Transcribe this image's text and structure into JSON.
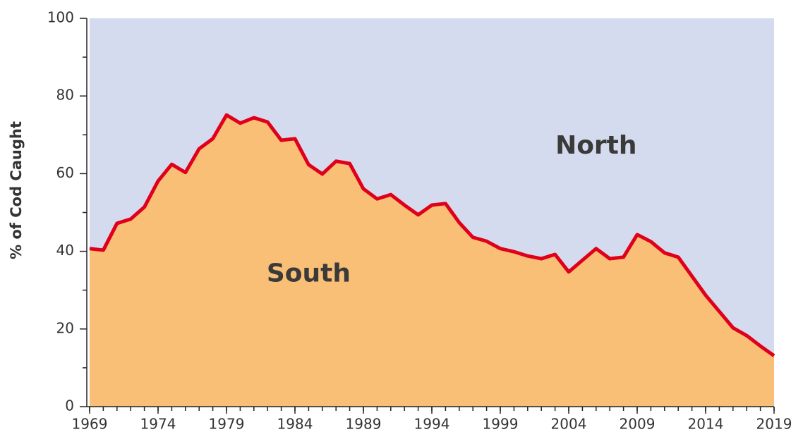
{
  "chart_data": {
    "type": "area",
    "y_label": "% of Cod Caught",
    "x": [
      1969,
      1970,
      1971,
      1972,
      1973,
      1974,
      1975,
      1976,
      1977,
      1978,
      1979,
      1980,
      1981,
      1982,
      1983,
      1984,
      1985,
      1986,
      1987,
      1988,
      1989,
      1990,
      1991,
      1992,
      1993,
      1994,
      1995,
      1996,
      1997,
      1998,
      1999,
      2000,
      2001,
      2002,
      2003,
      2004,
      2005,
      2006,
      2007,
      2008,
      2009,
      2010,
      2011,
      2012,
      2013,
      2014,
      2015,
      2016,
      2017,
      2018,
      2019
    ],
    "series": [
      {
        "name": "South",
        "color": "#f9bf76",
        "line_color": "#e0001b",
        "values": [
          40.7,
          40.3,
          47.2,
          48.3,
          51.4,
          58.1,
          62.4,
          60.3,
          66.4,
          69.0,
          75.1,
          73.0,
          74.4,
          73.3,
          68.6,
          69.0,
          62.3,
          59.9,
          63.2,
          62.6,
          56.1,
          53.5,
          54.6,
          51.9,
          49.4,
          51.9,
          52.3,
          47.4,
          43.6,
          42.6,
          40.7,
          39.9,
          38.8,
          38.1,
          39.2,
          34.7,
          37.7,
          40.7,
          38.1,
          38.5,
          44.3,
          42.5,
          39.6,
          38.5,
          33.6,
          28.7,
          24.5,
          20.3,
          18.3,
          15.6,
          13.1
        ]
      }
    ],
    "remainder_name": "North",
    "remainder_color": "#d4dbee",
    "xlim": [
      1969,
      2019
    ],
    "xticks": [
      1969,
      1974,
      1979,
      1984,
      1989,
      1994,
      1999,
      2004,
      2009,
      2014,
      2019
    ],
    "ylim": [
      0,
      100
    ],
    "yticks": [
      0,
      20,
      40,
      60,
      80,
      100
    ]
  }
}
